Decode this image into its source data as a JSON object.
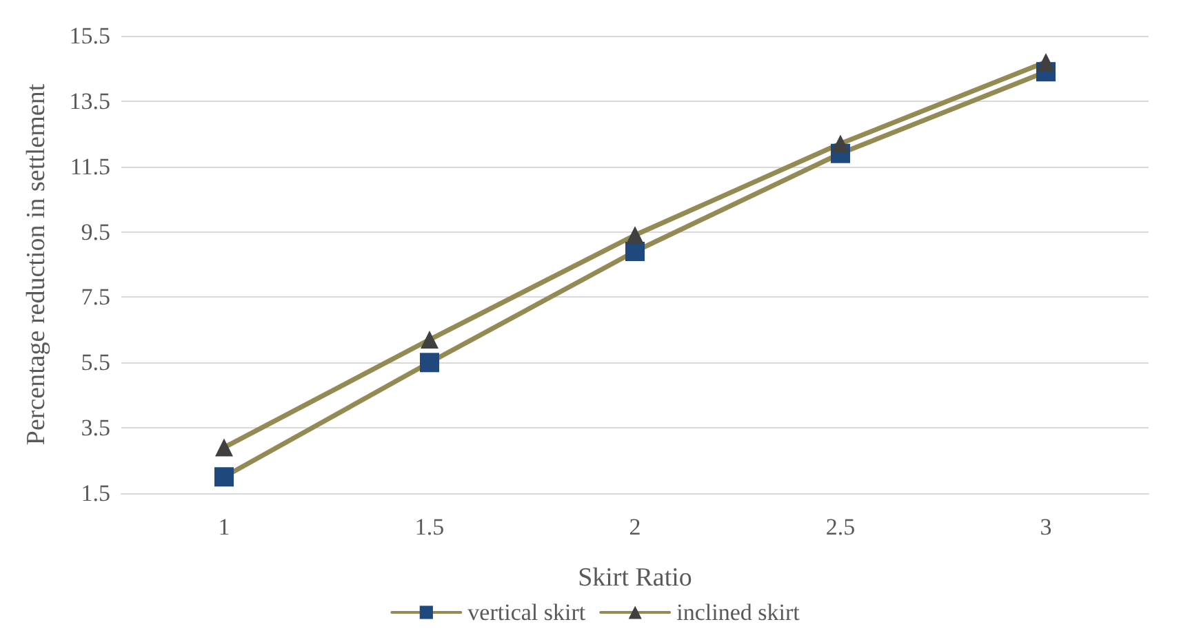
{
  "chart_data": {
    "type": "line",
    "xlabel": "Skirt Ratio",
    "ylabel": "Percentage reduction in settlement",
    "categories": [
      "1",
      "1.5",
      "2",
      "2.5",
      "3"
    ],
    "series": [
      {
        "name": "vertical skirt",
        "color": "#948a54",
        "marker": "square",
        "colors": [
          "#1f497d",
          "#1f497d",
          "#1f497d",
          "#1f497d",
          "#1f497d"
        ],
        "values": [
          2.0,
          5.5,
          8.9,
          11.9,
          14.4
        ]
      },
      {
        "name": "inclined skirt",
        "color": "#948a54",
        "marker": "triangle",
        "colors": [
          "#404040",
          "#404040",
          "#404040",
          "#404040",
          "#404040"
        ],
        "values": [
          2.9,
          6.2,
          9.4,
          12.2,
          14.7
        ]
      }
    ],
    "ylim": [
      1.5,
      15.5
    ],
    "yticks": [
      1.5,
      3.5,
      5.5,
      7.5,
      9.5,
      11.5,
      13.5,
      15.5
    ],
    "grid": "y",
    "legend": "bottom",
    "line_style": "solid"
  }
}
